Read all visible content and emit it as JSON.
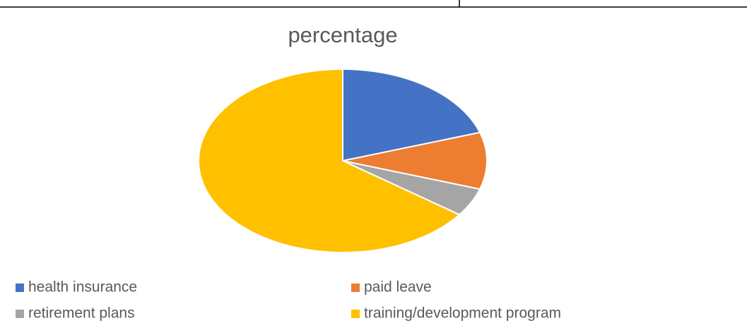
{
  "chart_data": {
    "type": "pie",
    "title": "percentage",
    "categories": [
      "health insurance",
      "paid leave",
      "retirement plans",
      "training/development program"
    ],
    "values": [
      20,
      10,
      5,
      65
    ],
    "colors": [
      "#4472c4",
      "#ed7d31",
      "#a5a5a5",
      "#ffc000"
    ],
    "legend": "bottom"
  }
}
